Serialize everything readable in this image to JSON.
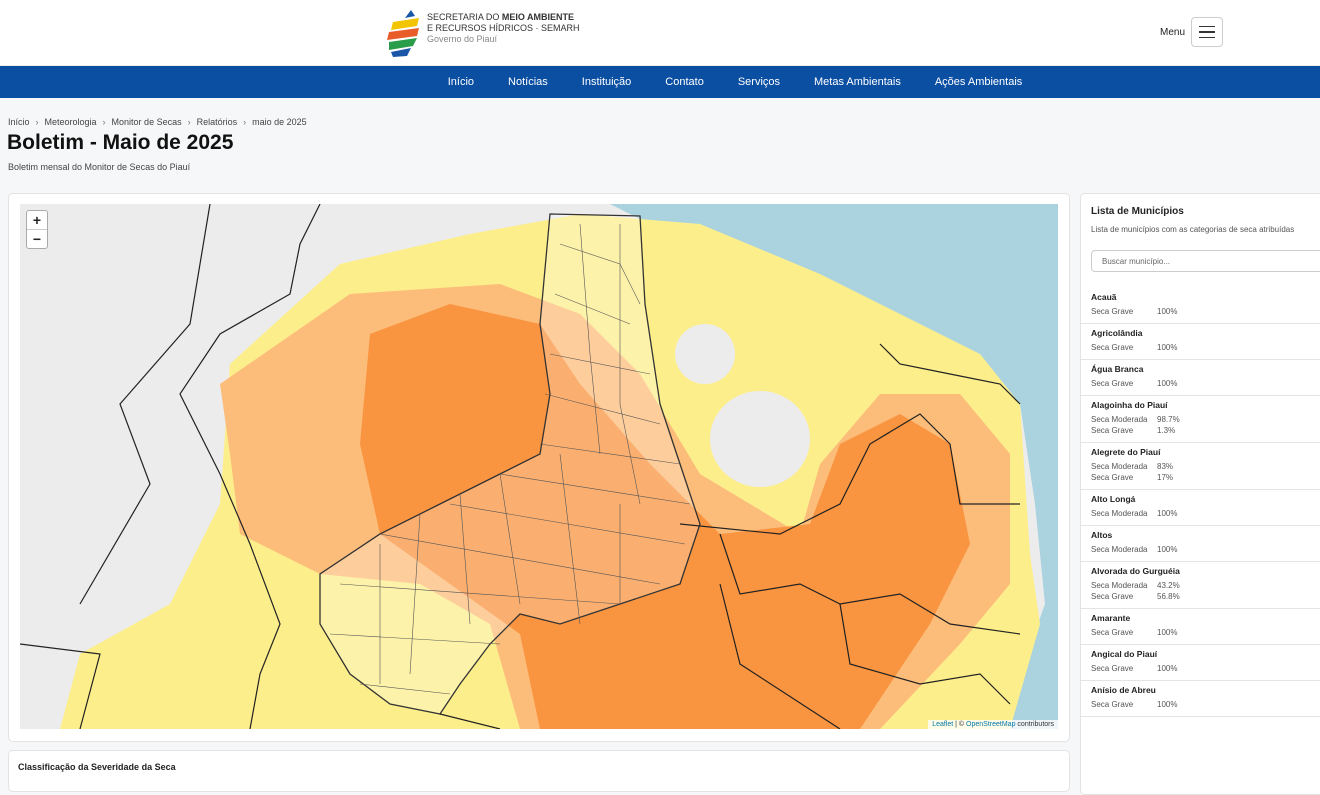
{
  "header": {
    "logo": {
      "line1_a": "SECRETARIA DO",
      "line1_b": "MEIO AMBIENTE",
      "line2": "E RECURSOS HÍDRICOS · SEMARH",
      "line3": "Governo do Piauí"
    },
    "menu": "Menu"
  },
  "nav": [
    "Início",
    "Notícias",
    "Instituição",
    "Contato",
    "Serviços",
    "Metas Ambientais",
    "Ações Ambientais"
  ],
  "breadcrumb": [
    "Início",
    "Meteorologia",
    "Monitor de Secas",
    "Relatórios",
    "maio de 2025"
  ],
  "page": {
    "title": "Boletim - Maio de 2025",
    "subtitle": "Boletim mensal do Monitor de Secas do Piauí"
  },
  "map": {
    "zoom_in": "+",
    "zoom_out": "−",
    "attribution": [
      "Leaflet",
      "| ©",
      "OpenStreetMap",
      "contributors"
    ]
  },
  "legend_card": {
    "title": "Classificação da Severidade da Seca"
  },
  "sidebar": {
    "title": "Lista de Municípios",
    "subtitle": "Lista de municípios com as categorias de seca atribuídas",
    "search_placeholder": "Buscar município...",
    "items": [
      {
        "name": "Acauã",
        "rows": [
          [
            "Seca Grave",
            "100%"
          ]
        ]
      },
      {
        "name": "Agricolândia",
        "rows": [
          [
            "Seca Grave",
            "100%"
          ]
        ]
      },
      {
        "name": "Água Branca",
        "rows": [
          [
            "Seca Grave",
            "100%"
          ]
        ]
      },
      {
        "name": "Alagoinha do Piauí",
        "rows": [
          [
            "Seca Moderada",
            "98.7%"
          ],
          [
            "Seca Grave",
            "1.3%"
          ]
        ]
      },
      {
        "name": "Alegrete do Piauí",
        "rows": [
          [
            "Seca Moderada",
            "83%"
          ],
          [
            "Seca Grave",
            "17%"
          ]
        ]
      },
      {
        "name": "Alto Longá",
        "rows": [
          [
            "Seca Moderada",
            "100%"
          ]
        ]
      },
      {
        "name": "Altos",
        "rows": [
          [
            "Seca Moderada",
            "100%"
          ]
        ]
      },
      {
        "name": "Alvorada do Gurguéia",
        "rows": [
          [
            "Seca Moderada",
            "43.2%"
          ],
          [
            "Seca Grave",
            "56.8%"
          ]
        ]
      },
      {
        "name": "Amarante",
        "rows": [
          [
            "Seca Grave",
            "100%"
          ]
        ]
      },
      {
        "name": "Angical do Piauí",
        "rows": [
          [
            "Seca Grave",
            "100%"
          ]
        ]
      },
      {
        "name": "Anísio de Abreu",
        "rows": [
          [
            "Seca Grave",
            "100%"
          ]
        ]
      }
    ]
  }
}
